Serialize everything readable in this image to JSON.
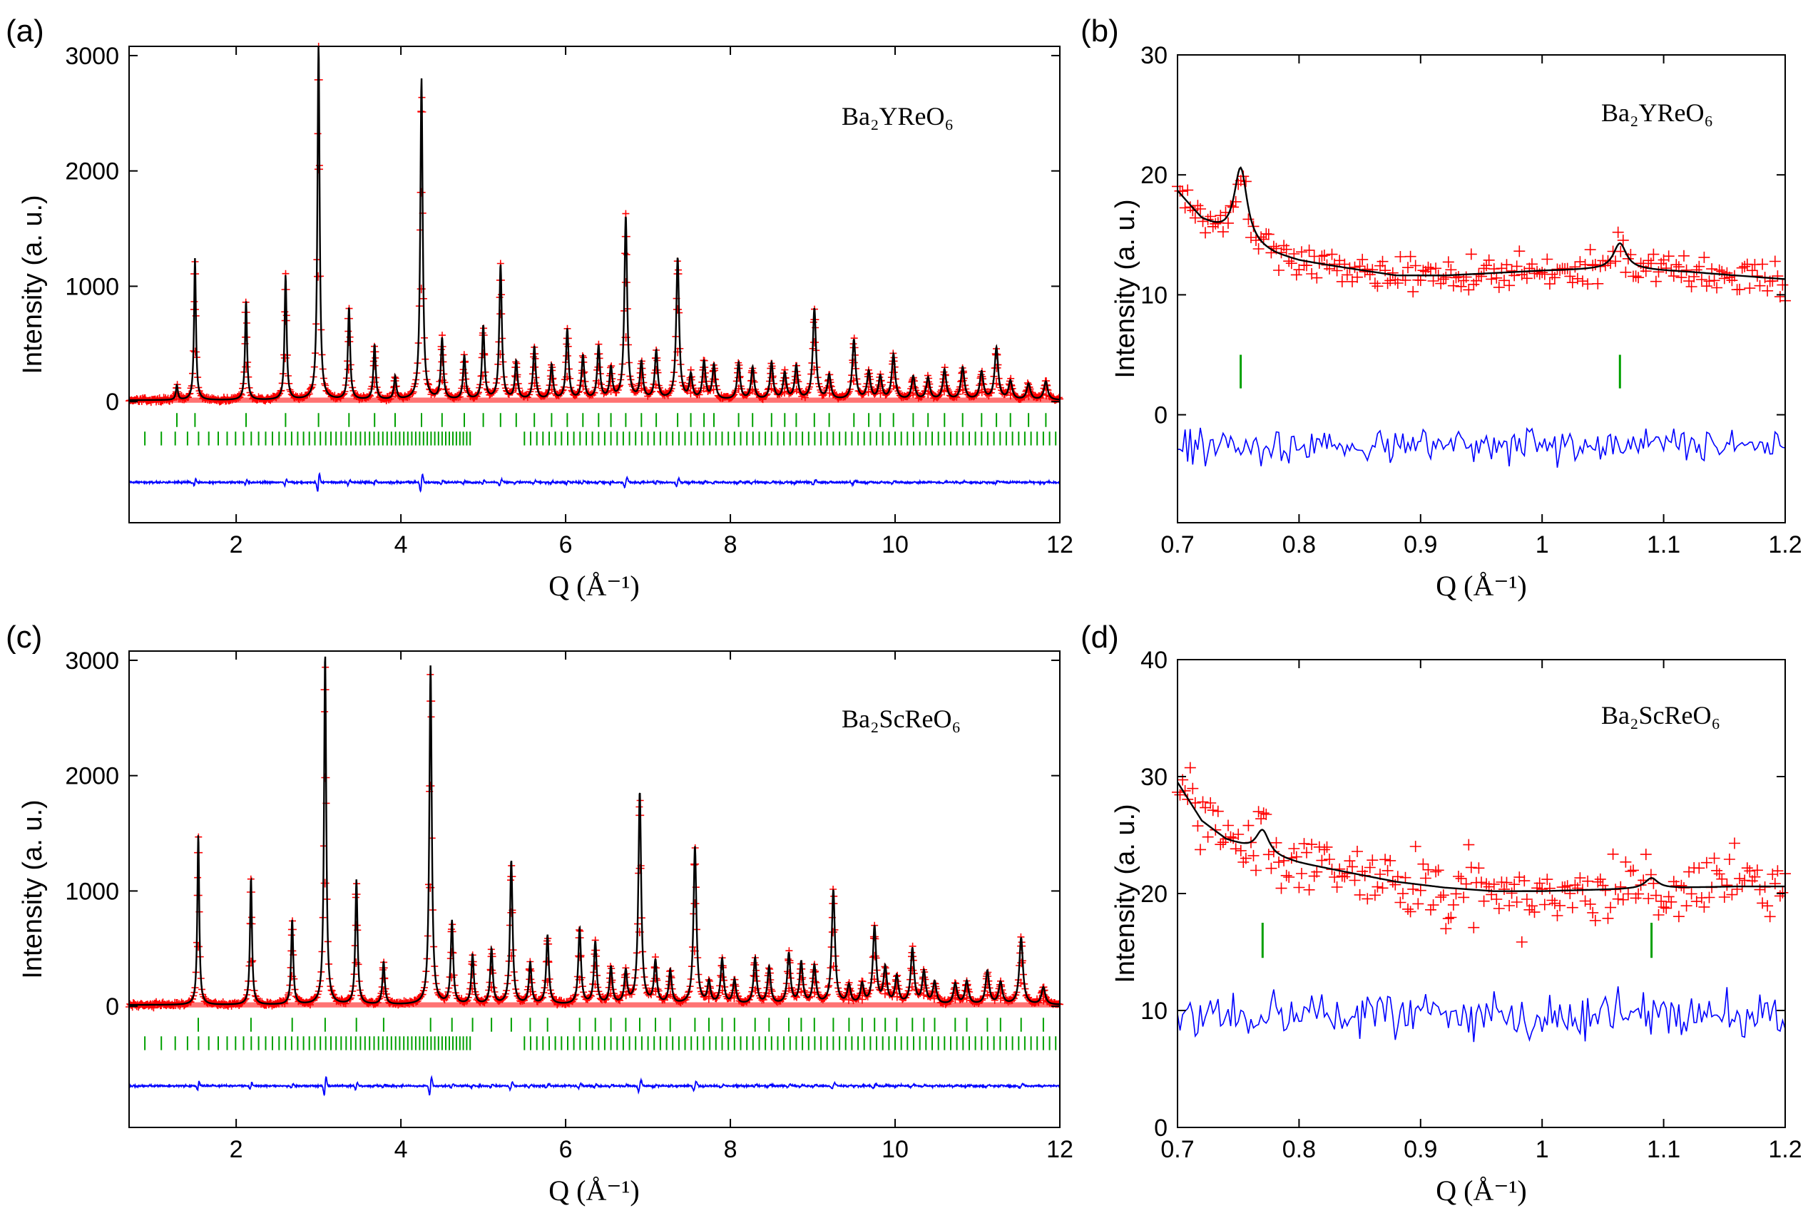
{
  "figure": {
    "panels": [
      "(a)",
      "(b)",
      "(c)",
      "(d)"
    ]
  },
  "colors": {
    "observed": "#ff0000",
    "calculated": "#000000",
    "difference": "#0000ff",
    "reflections": "#00a000"
  },
  "chart_data": [
    {
      "panel": "(a)",
      "type": "line",
      "compound": "Ba₂YReO₆",
      "xlabel": "Q (Å⁻¹)",
      "ylabel": "Intensity (a. u.)",
      "xlim": [
        0.7,
        12
      ],
      "ylim": [
        -1050,
        3080
      ],
      "xticks": [
        "2",
        "4",
        "6",
        "8",
        "10",
        "12"
      ],
      "yticks": [
        "0",
        "1000",
        "2000",
        "3000"
      ],
      "background": 12,
      "difference_offset": -700,
      "reflection_rows": [
        -160,
        -320
      ],
      "peaks": [
        {
          "q": 1.28,
          "i": 130
        },
        {
          "q": 1.5,
          "i": 1230
        },
        {
          "q": 2.12,
          "i": 860
        },
        {
          "q": 2.6,
          "i": 1080
        },
        {
          "q": 3.0,
          "i": 3100
        },
        {
          "q": 3.37,
          "i": 800
        },
        {
          "q": 3.68,
          "i": 480
        },
        {
          "q": 3.93,
          "i": 200
        },
        {
          "q": 4.25,
          "i": 2790
        },
        {
          "q": 4.5,
          "i": 530
        },
        {
          "q": 4.77,
          "i": 380
        },
        {
          "q": 5.0,
          "i": 640
        },
        {
          "q": 5.21,
          "i": 1170
        },
        {
          "q": 5.4,
          "i": 330
        },
        {
          "q": 5.62,
          "i": 460
        },
        {
          "q": 5.83,
          "i": 300
        },
        {
          "q": 6.02,
          "i": 610
        },
        {
          "q": 6.21,
          "i": 380
        },
        {
          "q": 6.4,
          "i": 460
        },
        {
          "q": 6.55,
          "i": 270
        },
        {
          "q": 6.73,
          "i": 1590
        },
        {
          "q": 6.92,
          "i": 320
        },
        {
          "q": 7.1,
          "i": 420
        },
        {
          "q": 7.36,
          "i": 1230
        },
        {
          "q": 7.52,
          "i": 210
        },
        {
          "q": 7.68,
          "i": 330
        },
        {
          "q": 7.8,
          "i": 300
        },
        {
          "q": 8.1,
          "i": 320
        },
        {
          "q": 8.27,
          "i": 280
        },
        {
          "q": 8.5,
          "i": 320
        },
        {
          "q": 8.66,
          "i": 230
        },
        {
          "q": 8.8,
          "i": 290
        },
        {
          "q": 9.02,
          "i": 790
        },
        {
          "q": 9.2,
          "i": 210
        },
        {
          "q": 9.5,
          "i": 520
        },
        {
          "q": 9.68,
          "i": 240
        },
        {
          "q": 9.82,
          "i": 200
        },
        {
          "q": 9.98,
          "i": 390
        },
        {
          "q": 10.22,
          "i": 200
        },
        {
          "q": 10.4,
          "i": 190
        },
        {
          "q": 10.6,
          "i": 260
        },
        {
          "q": 10.82,
          "i": 280
        },
        {
          "q": 11.05,
          "i": 240
        },
        {
          "q": 11.23,
          "i": 450
        },
        {
          "q": 11.4,
          "i": 160
        },
        {
          "q": 11.62,
          "i": 140
        },
        {
          "q": 11.83,
          "i": 160
        }
      ]
    },
    {
      "panel": "(b)",
      "type": "line",
      "compound": "Ba₂YReO₆",
      "xlabel": "Q (Å⁻¹)",
      "ylabel": "Intensity (a. u.)",
      "xlim": [
        0.7,
        1.2
      ],
      "ylim": [
        -9,
        30
      ],
      "xticks": [
        "0.7",
        "0.8",
        "0.9",
        "1",
        "1.1",
        "1.2"
      ],
      "yticks": [
        "0",
        "10",
        "20",
        "30"
      ],
      "background": [
        [
          0.7,
          18.6
        ],
        [
          0.72,
          16.2
        ],
        [
          0.74,
          15.0
        ],
        [
          0.76,
          14.0
        ],
        [
          0.78,
          13.3
        ],
        [
          0.8,
          12.8
        ],
        [
          0.84,
          12.2
        ],
        [
          0.88,
          11.6
        ],
        [
          0.92,
          11.6
        ],
        [
          0.96,
          11.8
        ],
        [
          1.0,
          12.0
        ],
        [
          1.04,
          12.1
        ],
        [
          1.08,
          12.1
        ],
        [
          1.12,
          11.9
        ],
        [
          1.16,
          11.6
        ],
        [
          1.2,
          11.3
        ]
      ],
      "peaks": [
        {
          "q": 0.752,
          "i": 6.2,
          "w": 0.0065
        },
        {
          "q": 1.064,
          "i": 2.2,
          "w": 0.0065
        }
      ],
      "noise": 1.3,
      "difference_offset": -2.5,
      "difference_noise": 1.1,
      "reflections": [
        0.752,
        1.064
      ],
      "reflection_level": [
        2.2,
        5
      ]
    },
    {
      "panel": "(c)",
      "type": "line",
      "compound": "Ba₂ScReO₆",
      "xlabel": "Q (Å⁻¹)",
      "ylabel": "Intensity (a. u.)",
      "xlim": [
        0.7,
        12
      ],
      "ylim": [
        -1050,
        3080
      ],
      "xticks": [
        "2",
        "4",
        "6",
        "8",
        "10",
        "12"
      ],
      "yticks": [
        "0",
        "1000",
        "2000",
        "3000"
      ],
      "background": 12,
      "difference_offset": -690,
      "reflection_rows": [
        -160,
        -320
      ],
      "peaks": [
        {
          "q": 1.54,
          "i": 1480
        },
        {
          "q": 2.18,
          "i": 1100
        },
        {
          "q": 2.68,
          "i": 740
        },
        {
          "q": 3.08,
          "i": 3050
        },
        {
          "q": 3.46,
          "i": 1080
        },
        {
          "q": 3.79,
          "i": 370
        },
        {
          "q": 4.36,
          "i": 2940
        },
        {
          "q": 4.62,
          "i": 720
        },
        {
          "q": 4.87,
          "i": 430
        },
        {
          "q": 5.1,
          "i": 480
        },
        {
          "q": 5.34,
          "i": 1250
        },
        {
          "q": 5.57,
          "i": 360
        },
        {
          "q": 5.78,
          "i": 600
        },
        {
          "q": 6.17,
          "i": 660
        },
        {
          "q": 6.36,
          "i": 540
        },
        {
          "q": 6.55,
          "i": 320
        },
        {
          "q": 6.73,
          "i": 280
        },
        {
          "q": 6.9,
          "i": 1840
        },
        {
          "q": 7.09,
          "i": 370
        },
        {
          "q": 7.27,
          "i": 290
        },
        {
          "q": 7.57,
          "i": 1370
        },
        {
          "q": 7.74,
          "i": 190
        },
        {
          "q": 7.9,
          "i": 390
        },
        {
          "q": 8.05,
          "i": 210
        },
        {
          "q": 8.3,
          "i": 400
        },
        {
          "q": 8.47,
          "i": 320
        },
        {
          "q": 8.71,
          "i": 440
        },
        {
          "q": 8.86,
          "i": 360
        },
        {
          "q": 9.02,
          "i": 330
        },
        {
          "q": 9.25,
          "i": 990
        },
        {
          "q": 9.44,
          "i": 160
        },
        {
          "q": 9.6,
          "i": 170
        },
        {
          "q": 9.75,
          "i": 670
        },
        {
          "q": 9.88,
          "i": 310
        },
        {
          "q": 10.02,
          "i": 240
        },
        {
          "q": 10.21,
          "i": 480
        },
        {
          "q": 10.35,
          "i": 280
        },
        {
          "q": 10.48,
          "i": 190
        },
        {
          "q": 10.73,
          "i": 180
        },
        {
          "q": 10.87,
          "i": 200
        },
        {
          "q": 11.12,
          "i": 290
        },
        {
          "q": 11.28,
          "i": 190
        },
        {
          "q": 11.53,
          "i": 580
        },
        {
          "q": 11.8,
          "i": 150
        }
      ]
    },
    {
      "panel": "(d)",
      "type": "line",
      "compound": "Ba₂ScReO₆",
      "xlabel": "Q (Å⁻¹)",
      "ylabel": "Intensity (a. u.)",
      "xlim": [
        0.7,
        1.2
      ],
      "ylim": [
        0,
        40
      ],
      "xticks": [
        "0.7",
        "0.8",
        "0.9",
        "1",
        "1.1",
        "1.2"
      ],
      "yticks": [
        "0",
        "10",
        "20",
        "30",
        "40"
      ],
      "background": [
        [
          0.7,
          29.5
        ],
        [
          0.72,
          26.2
        ],
        [
          0.74,
          24.6
        ],
        [
          0.76,
          23.8
        ],
        [
          0.78,
          23.1
        ],
        [
          0.8,
          22.6
        ],
        [
          0.84,
          21.8
        ],
        [
          0.88,
          21.0
        ],
        [
          0.92,
          20.5
        ],
        [
          0.96,
          20.2
        ],
        [
          1.0,
          20.2
        ],
        [
          1.04,
          20.3
        ],
        [
          1.08,
          20.4
        ],
        [
          1.12,
          20.5
        ],
        [
          1.16,
          20.6
        ],
        [
          1.2,
          20.6
        ]
      ],
      "peaks": [
        {
          "q": 0.77,
          "i": 2.0,
          "w": 0.0065
        },
        {
          "q": 1.09,
          "i": 0.9,
          "w": 0.0065
        }
      ],
      "noise": 2.3,
      "difference_offset": 9.5,
      "difference_noise": 1.6,
      "reflections": [
        0.77,
        1.09
      ],
      "reflection_level": [
        14.5,
        17.5
      ]
    }
  ]
}
